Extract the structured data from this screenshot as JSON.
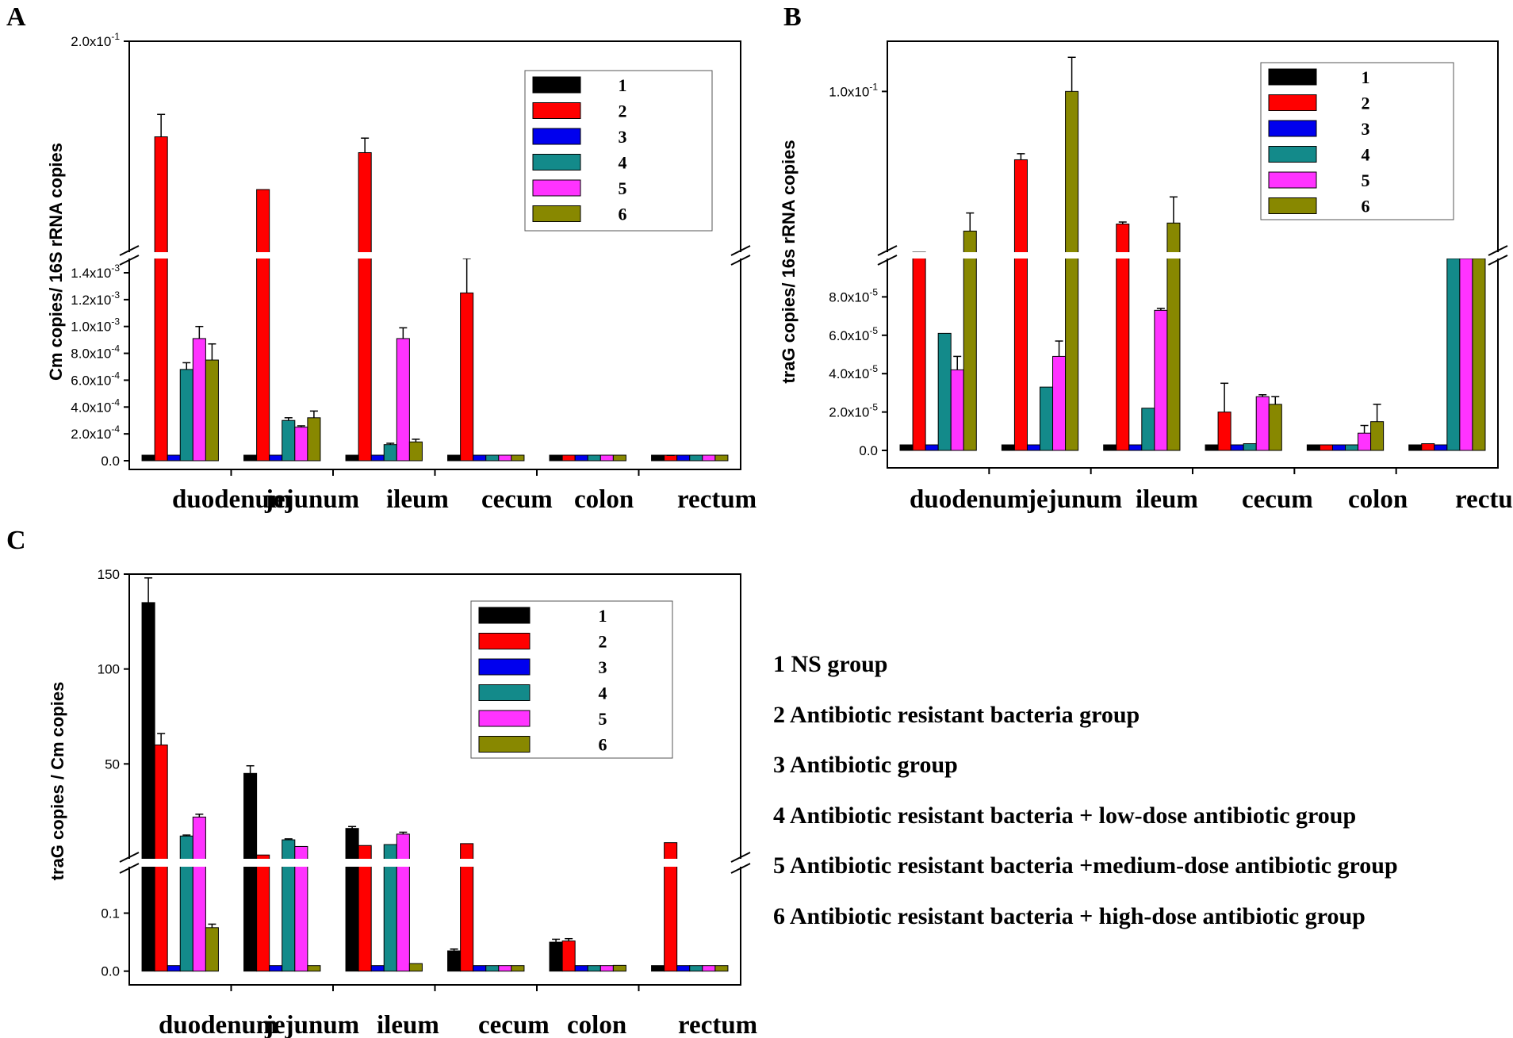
{
  "colors": [
    "#000000",
    "#ff0000",
    "#0000ee",
    "#138a8a",
    "#ff33ff",
    "#888800"
  ],
  "group_descriptions": [
    "1 NS group",
    "2 Antibiotic resistant bacteria group",
    "3 Antibiotic group",
    "4 Antibiotic resistant bacteria + low-dose antibiotic group",
    "5 Antibiotic resistant bacteria +medium-dose antibiotic group",
    "6 Antibiotic resistant bacteria + high-dose antibiotic group"
  ],
  "chart_data": [
    {
      "panel": "A",
      "type": "bar",
      "ylabel": "Cm copies/ 16S rRNA copies",
      "xlabel": "",
      "categories": [
        "duodenum",
        "jejunum",
        "ileum",
        "cecum",
        "colon",
        "rectum"
      ],
      "legend": [
        "1",
        "2",
        "3",
        "4",
        "5",
        "6"
      ],
      "broken_axis": true,
      "lower_ylim": [
        0,
        0.0014
      ],
      "lower_ticks": [
        "0.0",
        "2.0x10<sup>-4</sup>",
        "4.0x10<sup>-4</sup>",
        "6.0x10<sup>-4</sup>",
        "8.0x10<sup>-4</sup>",
        "1.0x10<sup>-3</sup>",
        "1.2x10<sup>-3</sup>",
        "1.4x10<sup>-3</sup>"
      ],
      "upper_ylim": [
        0.04,
        0.2
      ],
      "upper_ticks": [
        "2.0x10<sup>-1</sup>"
      ],
      "series": [
        {
          "name": "1",
          "values": [
            0,
            0,
            0,
            0,
            0,
            0
          ],
          "errors": [
            0,
            0,
            0,
            0,
            0,
            0
          ]
        },
        {
          "name": "2",
          "values": [
            0.1275,
            0.0875,
            0.1155,
            0.00125,
            0,
            2e-05
          ],
          "errors": [
            0.017,
            0,
            0.011,
            0.00022,
            0,
            2e-05
          ]
        },
        {
          "name": "3",
          "values": [
            0,
            0,
            0,
            0,
            0,
            0
          ],
          "errors": [
            0,
            0,
            0,
            0,
            0,
            0
          ]
        },
        {
          "name": "4",
          "values": [
            0.00068,
            0.0003,
            0.00012,
            0,
            0,
            0
          ],
          "errors": [
            5e-05,
            2e-05,
            1e-05,
            0,
            0,
            0
          ]
        },
        {
          "name": "5",
          "values": [
            0.00091,
            0.00025,
            0.00091,
            0,
            0,
            0
          ],
          "errors": [
            9e-05,
            1e-05,
            8e-05,
            0,
            0,
            0
          ]
        },
        {
          "name": "6",
          "values": [
            0.00075,
            0.00032,
            0.00014,
            0,
            0,
            0
          ],
          "errors": [
            0.00012,
            5e-05,
            2e-05,
            0,
            0,
            0
          ]
        }
      ]
    },
    {
      "panel": "B",
      "type": "bar",
      "ylabel": "traG copies/ 16s rRNA copies",
      "xlabel": "",
      "categories": [
        "duodenum",
        "jejunum",
        "ileum",
        "cecum",
        "colon",
        "rectum"
      ],
      "legend": [
        "1",
        "2",
        "3",
        "4",
        "5",
        "6"
      ],
      "broken_axis": true,
      "lower_ylim": [
        0,
        0.0001
      ],
      "lower_ticks": [
        "0.0",
        "2.0x10<sup>-5</sup>",
        "4.0x10<sup>-5</sup>",
        "6.0x10<sup>-5</sup>",
        "8.0x10<sup>-5</sup>"
      ],
      "upper_ylim": [
        0.02,
        0.125
      ],
      "upper_ticks": [
        "1.0x10<sup>-1</sup>"
      ],
      "series": [
        {
          "name": "1",
          "values": [
            0,
            0,
            0,
            0,
            0,
            0
          ],
          "errors": [
            0,
            0,
            0,
            0,
            0,
            0
          ]
        },
        {
          "name": "2",
          "values": [
            0.02,
            0.066,
            0.034,
            2e-05,
            0,
            3.5e-06
          ],
          "errors": [
            0,
            0.003,
            0.001,
            1.5e-05,
            0,
            0
          ]
        },
        {
          "name": "3",
          "values": [
            0,
            0,
            0,
            0,
            0,
            0
          ],
          "errors": [
            0,
            0,
            0,
            0,
            0,
            0
          ]
        },
        {
          "name": "4",
          "values": [
            6.1e-05,
            3.3e-05,
            2.2e-05,
            3.5e-06,
            5e-07,
            0.0001
          ]
        },
        {
          "name": "5",
          "values": [
            4.2e-05,
            4.9e-05,
            7.3e-05,
            2.8e-05,
            9e-06,
            0.0001
          ],
          "errors": [
            7e-06,
            8e-06,
            1e-06,
            1e-06,
            4e-06,
            0
          ]
        },
        {
          "name": "6",
          "values": [
            0.0305,
            0.1,
            0.0345,
            2.4e-05,
            1.5e-05,
            0.0001
          ],
          "errors": [
            0.009,
            0.017,
            0.013,
            4e-06,
            9e-06,
            0
          ]
        }
      ]
    },
    {
      "panel": "C",
      "type": "bar",
      "ylabel": "traG copies / Cm copies",
      "xlabel": "",
      "categories": [
        "duodenum",
        "jejunum",
        "ileum",
        "cecum",
        "colon",
        "rectum"
      ],
      "legend": [
        "1",
        "2",
        "3",
        "4",
        "5",
        "6"
      ],
      "broken_axis": true,
      "lower_ylim": [
        -0.01,
        0.18
      ],
      "lower_ticks": [
        "0.0",
        "0.1"
      ],
      "upper_ylim": [
        0,
        150
      ],
      "upper_ticks": [
        "50",
        "100",
        "150"
      ],
      "series": [
        {
          "name": "1",
          "values": [
            135,
            45,
            16,
            0.035,
            0.05,
            0.008
          ],
          "errors": [
            13,
            4,
            1,
            0.003,
            0.005,
            0
          ]
        },
        {
          "name": "2",
          "values": [
            60,
            2,
            7,
            8,
            0.052,
            8.5
          ],
          "errors": [
            6,
            0,
            0,
            0,
            0.004,
            0
          ]
        },
        {
          "name": "3",
          "values": [
            0,
            0,
            0,
            0,
            0,
            0
          ],
          "errors": [
            0,
            0,
            0,
            0,
            0,
            0
          ]
        },
        {
          "name": "4",
          "values": [
            12,
            10,
            7.5,
            0,
            0,
            0
          ],
          "errors": [
            0.5,
            0.5,
            0,
            0,
            0,
            0
          ]
        },
        {
          "name": "5",
          "values": [
            22,
            6.5,
            13,
            0,
            0,
            0
          ],
          "errors": [
            1.5,
            0,
            1,
            0,
            0,
            0
          ]
        },
        {
          "name": "6",
          "values": [
            0.075,
            0.005,
            0.013,
            0,
            0.01,
            0
          ],
          "errors": [
            0.006,
            0,
            0,
            0,
            0,
            0
          ]
        }
      ]
    }
  ]
}
